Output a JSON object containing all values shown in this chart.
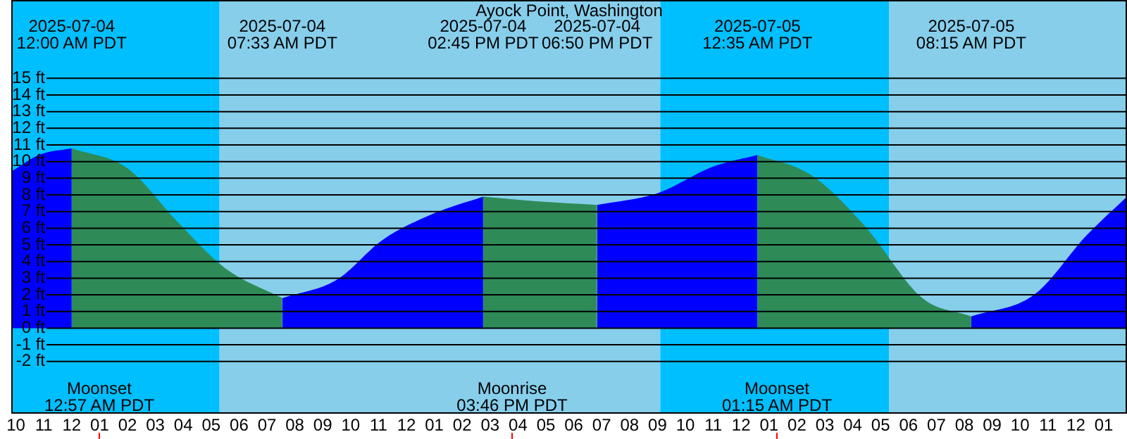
{
  "chart_data": {
    "type": "area",
    "title": "Ayock Point, Washington",
    "xlim": [
      "2025-07-03T21:50",
      "2025-07-05T13:50"
    ],
    "xticks": [
      {
        "value": "2025-07-03T22:00",
        "label": "10"
      },
      {
        "value": "2025-07-03T23:00",
        "label": "11"
      },
      {
        "value": "2025-07-04T00:00",
        "label": "12"
      },
      {
        "value": "2025-07-04T01:00",
        "label": "01"
      },
      {
        "value": "2025-07-04T02:00",
        "label": "02"
      },
      {
        "value": "2025-07-04T03:00",
        "label": "03"
      },
      {
        "value": "2025-07-04T04:00",
        "label": "04"
      },
      {
        "value": "2025-07-04T05:00",
        "label": "05"
      },
      {
        "value": "2025-07-04T06:00",
        "label": "06"
      },
      {
        "value": "2025-07-04T07:00",
        "label": "07"
      },
      {
        "value": "2025-07-04T08:00",
        "label": "08"
      },
      {
        "value": "2025-07-04T09:00",
        "label": "09"
      },
      {
        "value": "2025-07-04T10:00",
        "label": "10"
      },
      {
        "value": "2025-07-04T11:00",
        "label": "11"
      },
      {
        "value": "2025-07-04T12:00",
        "label": "12"
      },
      {
        "value": "2025-07-04T13:00",
        "label": "01"
      },
      {
        "value": "2025-07-04T14:00",
        "label": "02"
      },
      {
        "value": "2025-07-04T15:00",
        "label": "03"
      },
      {
        "value": "2025-07-04T16:00",
        "label": "04"
      },
      {
        "value": "2025-07-04T17:00",
        "label": "05"
      },
      {
        "value": "2025-07-04T18:00",
        "label": "06"
      },
      {
        "value": "2025-07-04T19:00",
        "label": "07"
      },
      {
        "value": "2025-07-04T20:00",
        "label": "08"
      },
      {
        "value": "2025-07-04T21:00",
        "label": "09"
      },
      {
        "value": "2025-07-04T22:00",
        "label": "10"
      },
      {
        "value": "2025-07-04T23:00",
        "label": "11"
      },
      {
        "value": "2025-07-05T00:00",
        "label": "12"
      },
      {
        "value": "2025-07-05T01:00",
        "label": "01"
      },
      {
        "value": "2025-07-05T02:00",
        "label": "02"
      },
      {
        "value": "2025-07-05T03:00",
        "label": "03"
      },
      {
        "value": "2025-07-05T04:00",
        "label": "04"
      },
      {
        "value": "2025-07-05T05:00",
        "label": "05"
      },
      {
        "value": "2025-07-05T06:00",
        "label": "06"
      },
      {
        "value": "2025-07-05T07:00",
        "label": "07"
      },
      {
        "value": "2025-07-05T08:00",
        "label": "08"
      },
      {
        "value": "2025-07-05T09:00",
        "label": "09"
      },
      {
        "value": "2025-07-05T10:00",
        "label": "10"
      },
      {
        "value": "2025-07-05T11:00",
        "label": "11"
      },
      {
        "value": "2025-07-05T12:00",
        "label": "12"
      },
      {
        "value": "2025-07-05T13:00",
        "label": "01"
      }
    ],
    "ylim": [
      -5.1,
      19.7
    ],
    "yticks": [
      {
        "value": -2,
        "label": "-2 ft"
      },
      {
        "value": -1,
        "label": "-1 ft"
      },
      {
        "value": 0,
        "label": "0 ft"
      },
      {
        "value": 1,
        "label": "1 ft"
      },
      {
        "value": 2,
        "label": "2 ft"
      },
      {
        "value": 3,
        "label": "3 ft"
      },
      {
        "value": 4,
        "label": "4 ft"
      },
      {
        "value": 5,
        "label": "5 ft"
      },
      {
        "value": 6,
        "label": "6 ft"
      },
      {
        "value": 7,
        "label": "7 ft"
      },
      {
        "value": 8,
        "label": "8 ft"
      },
      {
        "value": 9,
        "label": "9 ft"
      },
      {
        "value": 10,
        "label": "10 ft"
      },
      {
        "value": 11,
        "label": "11 ft"
      },
      {
        "value": 12,
        "label": "12 ft"
      },
      {
        "value": 13,
        "label": "13 ft"
      },
      {
        "value": 14,
        "label": "14 ft"
      },
      {
        "value": 15,
        "label": "15 ft"
      }
    ],
    "grid": "y",
    "marker": "none",
    "series": [
      {
        "color": "#0000ff",
        "x": [
          "2025-07-03T21:50",
          "2025-07-03T22:50",
          "2025-07-04T00:00"
        ],
        "values": [
          9.4,
          10.4,
          10.8
        ]
      },
      {
        "color": "#2e8b57",
        "x": [
          "2025-07-04T00:00",
          "2025-07-04T02:00",
          "2025-07-04T03:47",
          "2025-07-04T05:30",
          "2025-07-04T07:33"
        ],
        "values": [
          10.8,
          9.6,
          6.4,
          3.6,
          1.8
        ]
      },
      {
        "color": "#0000ff",
        "x": [
          "2025-07-04T07:33",
          "2025-07-04T09:30",
          "2025-07-04T11:09",
          "2025-07-04T13:00",
          "2025-07-04T14:45"
        ],
        "values": [
          1.8,
          2.9,
          5.3,
          6.9,
          7.9
        ]
      },
      {
        "color": "#2e8b57",
        "x": [
          "2025-07-04T14:45",
          "2025-07-04T16:48",
          "2025-07-04T18:50"
        ],
        "values": [
          7.9,
          7.6,
          7.4
        ]
      },
      {
        "color": "#0000ff",
        "x": [
          "2025-07-04T18:50",
          "2025-07-04T21:00",
          "2025-07-04T23:00",
          "2025-07-05T00:35"
        ],
        "values": [
          7.4,
          8.1,
          9.7,
          10.4
        ]
      },
      {
        "color": "#2e8b57",
        "x": [
          "2025-07-05T00:35",
          "2025-07-05T02:30",
          "2025-07-05T04:24",
          "2025-07-05T06:30",
          "2025-07-05T08:15"
        ],
        "values": [
          10.4,
          9.2,
          6.2,
          1.8,
          0.7
        ]
      },
      {
        "color": "#0000ff",
        "x": [
          "2025-07-05T08:15",
          "2025-07-05T10:30",
          "2025-07-05T12:24",
          "2025-07-05T13:50"
        ],
        "values": [
          0.7,
          2.0,
          5.6,
          7.9
        ]
      }
    ],
    "bands": [
      {
        "axis": "x",
        "from": "2025-07-03T21:50",
        "to": "2025-07-04T05:18",
        "color": "#00bfff"
      },
      {
        "axis": "x",
        "from": "2025-07-04T05:18",
        "to": "2025-07-04T21:06",
        "color": "#87ceeb"
      },
      {
        "axis": "x",
        "from": "2025-07-04T21:06",
        "to": "2025-07-05T05:18",
        "color": "#00bfff"
      },
      {
        "axis": "x",
        "from": "2025-07-05T05:18",
        "to": "2025-07-05T13:50",
        "color": "#87ceeb"
      }
    ],
    "ref_lines": [
      {
        "axis": "x",
        "value": "2025-07-04T00:57",
        "label": "Moonset\n12:57 AM PDT",
        "color": "#ff0000"
      },
      {
        "axis": "x",
        "value": "2025-07-04T15:46",
        "label": "Moonrise\n03:46 PM PDT",
        "color": "#ff0000"
      },
      {
        "axis": "x",
        "value": "2025-07-05T01:15",
        "label": "Moonset\n01:15 AM PDT",
        "color": "#ff0000"
      }
    ],
    "annotations": [
      "2025-07-04\n12:00 AM PDT",
      "2025-07-04\n07:33 AM PDT",
      "2025-07-04\n02:45 PM PDT",
      "2025-07-04\n06:50 PM PDT",
      "2025-07-05\n12:35 AM PDT",
      "2025-07-05\n08:15 AM PDT"
    ]
  }
}
